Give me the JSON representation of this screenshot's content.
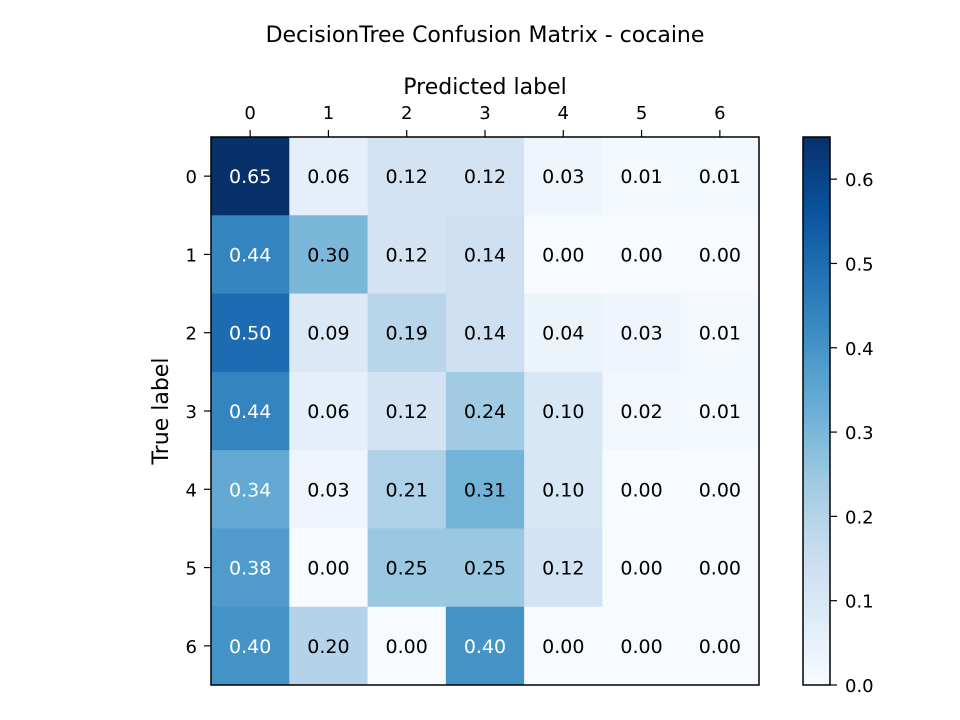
{
  "chart_data": {
    "type": "heatmap",
    "title": "DecisionTree Confusion Matrix - cocaine",
    "xlabel": "Predicted label",
    "ylabel": "True label",
    "x_categories": [
      "0",
      "1",
      "2",
      "3",
      "4",
      "5",
      "6"
    ],
    "y_categories": [
      "0",
      "1",
      "2",
      "3",
      "4",
      "5",
      "6"
    ],
    "values": [
      [
        0.65,
        0.06,
        0.12,
        0.12,
        0.03,
        0.01,
        0.01
      ],
      [
        0.44,
        0.3,
        0.12,
        0.14,
        0.0,
        0.0,
        0.0
      ],
      [
        0.5,
        0.09,
        0.19,
        0.14,
        0.04,
        0.03,
        0.01
      ],
      [
        0.44,
        0.06,
        0.12,
        0.24,
        0.1,
        0.02,
        0.01
      ],
      [
        0.34,
        0.03,
        0.21,
        0.31,
        0.1,
        0.0,
        0.0
      ],
      [
        0.38,
        0.0,
        0.25,
        0.25,
        0.12,
        0.0,
        0.0
      ],
      [
        0.4,
        0.2,
        0.0,
        0.4,
        0.0,
        0.0,
        0.0
      ]
    ],
    "colormap": "Blues",
    "colorbar": {
      "vmin": 0.0,
      "vmax": 0.65,
      "ticks": [
        0.0,
        0.1,
        0.2,
        0.3,
        0.4,
        0.5,
        0.6
      ],
      "tick_labels": [
        "0.0",
        "0.1",
        "0.2",
        "0.3",
        "0.4",
        "0.5",
        "0.6"
      ]
    },
    "x_axis_position": "top",
    "grid": false
  }
}
